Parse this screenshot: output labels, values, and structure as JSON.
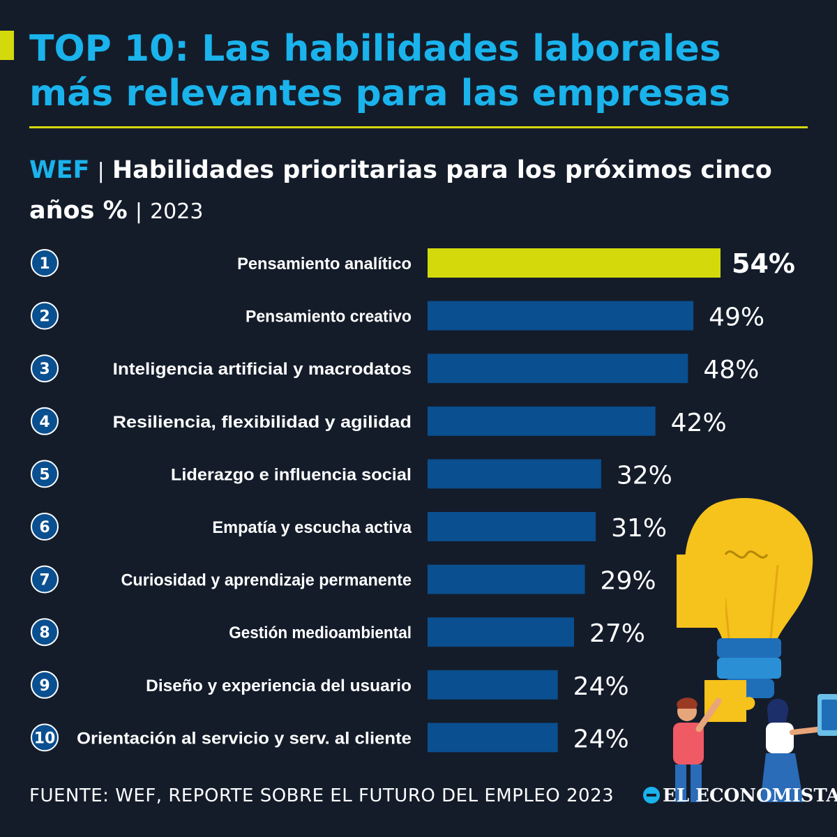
{
  "header": {
    "title_line1": "TOP 10: Las habilidades laborales",
    "title_line2": "más relevantes para las empresas",
    "source_tag": "WEF",
    "separator": "|",
    "subtitle_line1": "Habilidades prioritarias para los próximos cinco",
    "subtitle_line2": "años %",
    "year": "2023"
  },
  "colors": {
    "background": "#141c2a",
    "title": "#1ab3ec",
    "highlight_bar": "#d4d90c",
    "bar": "#0a4f8f",
    "rank_circle": "#0a4f8f"
  },
  "chart_data": {
    "type": "bar",
    "orientation": "horizontal",
    "ranks": [
      "1",
      "2",
      "3",
      "4",
      "5",
      "6",
      "7",
      "8",
      "9",
      "10"
    ],
    "categories": [
      "Pensamiento analítico",
      "Pensamiento creativo",
      "Inteligencia artificial y macrodatos",
      "Resiliencia, flexibilidad y agilidad",
      "Liderazgo e influencia social",
      "Empatía y escucha activa",
      "Curiosidad y aprendizaje permanente",
      "Gestión medioambiental",
      "Diseño y experiencia del usuario",
      "Orientación al servicio y serv. al cliente"
    ],
    "values": [
      54,
      49,
      48,
      42,
      32,
      31,
      29,
      27,
      24,
      24
    ],
    "value_labels": [
      "54%",
      "49%",
      "48%",
      "42%",
      "32%",
      "31%",
      "29%",
      "27%",
      "24%",
      "24%"
    ],
    "highlight_index": 0,
    "xlim": [
      0,
      54
    ]
  },
  "footer": {
    "source": "FUENTE: WEF, REPORTE SOBRE EL FUTURO DEL EMPLEO 2023",
    "brand": "EL ECONOMISTA"
  },
  "illustration": {
    "icons": [
      "lightbulb-icon",
      "puzzle-piece-icon",
      "man-figure-icon",
      "woman-figure-icon",
      "tablet-icon"
    ]
  }
}
